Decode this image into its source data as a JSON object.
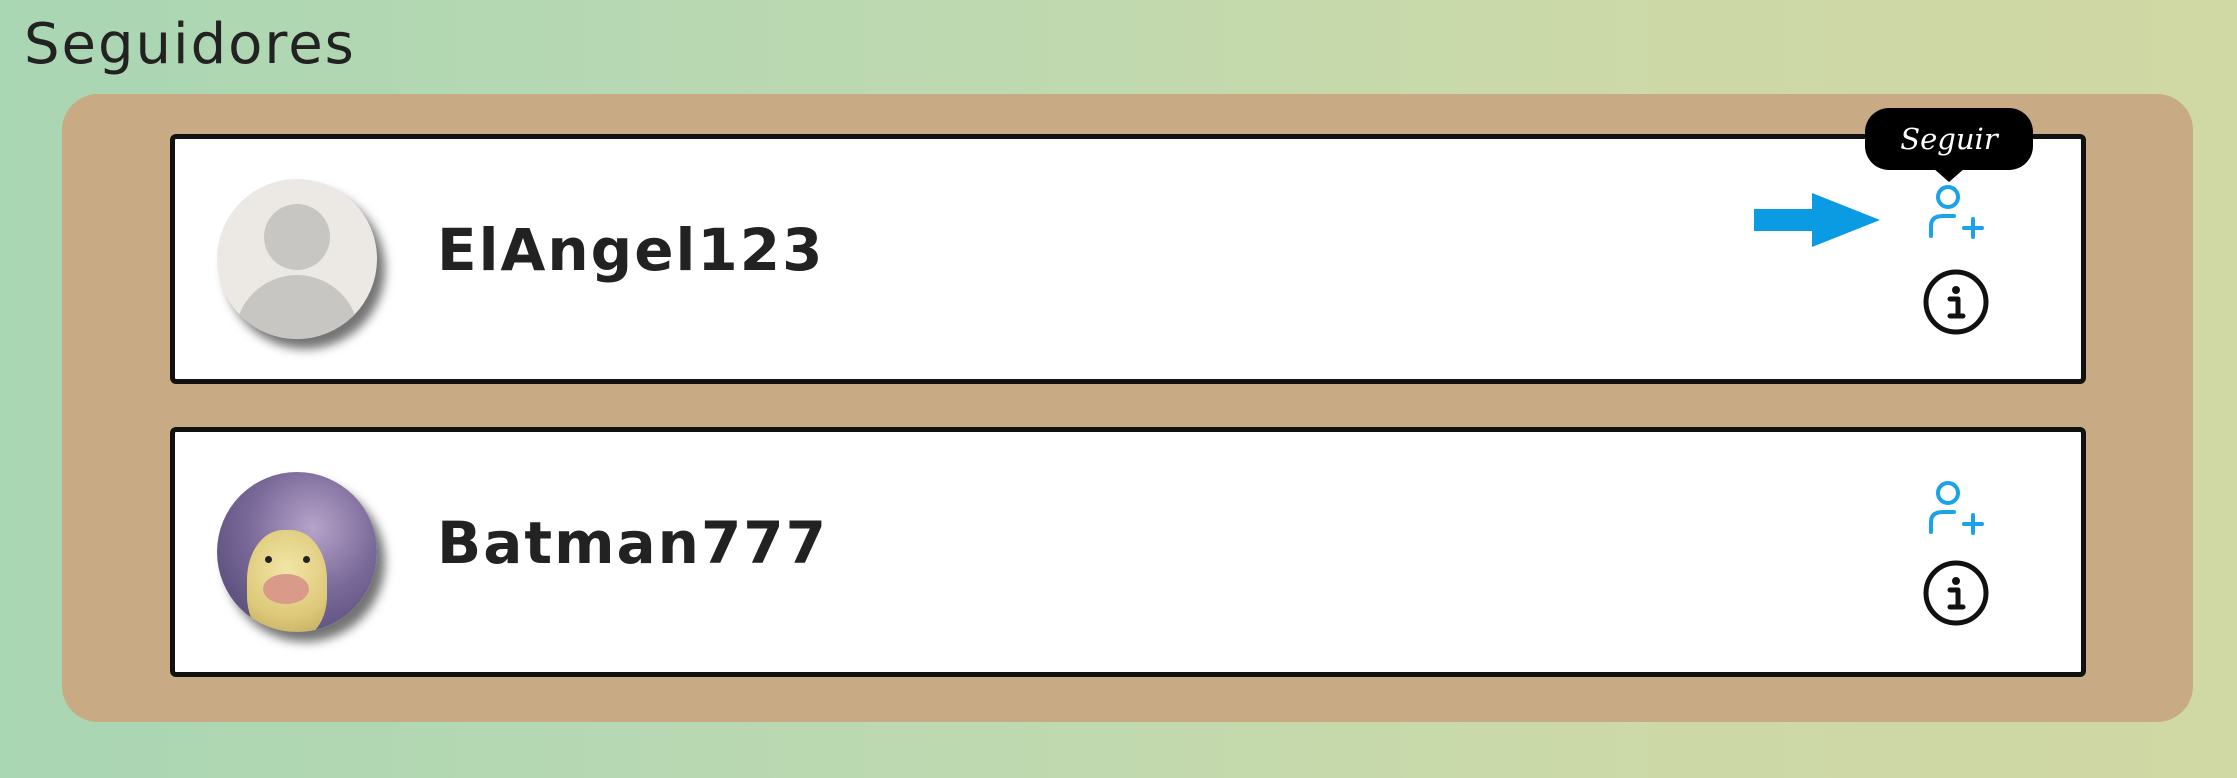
{
  "page": {
    "title": "Seguidores"
  },
  "followers": [
    {
      "username": "ElAngel123",
      "avatar": "default-avatar"
    },
    {
      "username": "Batman777",
      "avatar": "duck-photo-avatar"
    }
  ],
  "tooltip": {
    "text": "Seguir"
  },
  "icons": {
    "follow": "user-plus-icon",
    "info": "info-icon",
    "pointer": "arrow-right-icon"
  },
  "colors": {
    "follow_icon": "#1aa3e8",
    "arrow": "#0a9be3",
    "panel": "#c8aa84",
    "card_border": "#111111",
    "tooltip_bg": "#000000"
  }
}
